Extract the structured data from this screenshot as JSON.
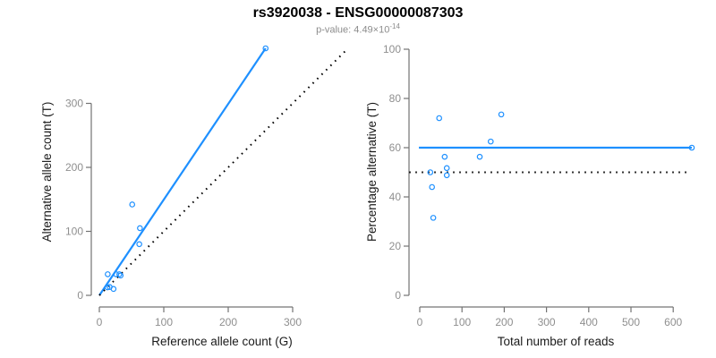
{
  "title": "rs3920038 - ENSG00000087303",
  "subtitle": {
    "prefix": "p-value: 4.49×10",
    "exponent": "-14"
  },
  "colors": {
    "accent_blue": "#1E90FF",
    "identity_black": "#000000",
    "axis_line": "#737373",
    "tick_label": "#8f8f8f",
    "axis_title": "#1a1a1a"
  },
  "chart_data": [
    {
      "type": "scatter",
      "panel": "allele-counts",
      "xlabel": "Reference allele count (G)",
      "ylabel": "Alternative allele count (T)",
      "xticks": [
        0,
        100,
        200,
        300
      ],
      "yticks": [
        0,
        100,
        200,
        300
      ],
      "xlim": [
        0,
        390
      ],
      "ylim": [
        0,
        390
      ],
      "grid": false,
      "legend": "none",
      "point_color": "#1E90FF",
      "points": [
        [
          12.5,
          12.5
        ],
        [
          16,
          13
        ],
        [
          22,
          10
        ],
        [
          13,
          33
        ],
        [
          26,
          33
        ],
        [
          31,
          33
        ],
        [
          33,
          31
        ],
        [
          62,
          80
        ],
        [
          63,
          105
        ],
        [
          51,
          142
        ],
        [
          258,
          386
        ]
      ],
      "lines": [
        {
          "name": "fit-line",
          "x1": 0,
          "y1": 0,
          "x2": 258,
          "y2": 386,
          "color": "#1E90FF",
          "style": "solid"
        },
        {
          "name": "identity-line",
          "x1": 0,
          "y1": 0,
          "x2": 383,
          "y2": 383,
          "color": "#000000",
          "style": "dotted"
        }
      ]
    },
    {
      "type": "scatter",
      "panel": "percentage-vs-reads",
      "xlabel": "Total number of reads",
      "ylabel": "Percentage alternative (T)",
      "xticks": [
        0,
        100,
        200,
        300,
        400,
        500,
        600
      ],
      "yticks": [
        0,
        20,
        40,
        60,
        80,
        100
      ],
      "xlim": [
        0,
        660
      ],
      "ylim": [
        0,
        100
      ],
      "grid": false,
      "legend": "none",
      "point_color": "#1E90FF",
      "points": [
        [
          25,
          50
        ],
        [
          29,
          44
        ],
        [
          32,
          31.5
        ],
        [
          46,
          72
        ],
        [
          59,
          56.3
        ],
        [
          64,
          51.7
        ],
        [
          64,
          48.8
        ],
        [
          142,
          56.3
        ],
        [
          168,
          62.5
        ],
        [
          193,
          73.5
        ],
        [
          644,
          60
        ]
      ],
      "lines": [
        {
          "name": "fit-line",
          "x1": -2,
          "y1": 60,
          "x2": 644,
          "y2": 60,
          "color": "#1E90FF",
          "style": "solid"
        },
        {
          "name": "identity-line",
          "x1": -25,
          "y1": 50,
          "x2": 632,
          "y2": 50,
          "color": "#000000",
          "style": "dotted"
        }
      ]
    }
  ]
}
